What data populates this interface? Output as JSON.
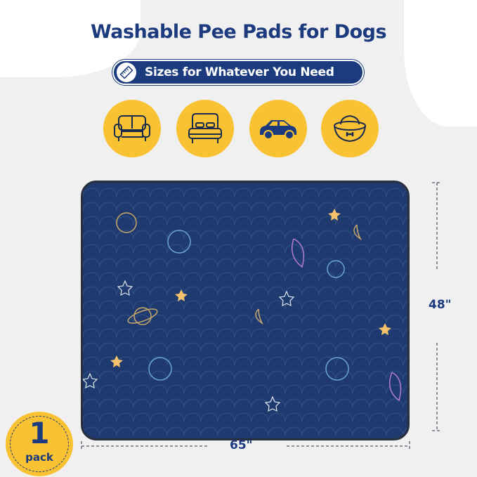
{
  "title": "Washable Pee Pads for Dogs",
  "badge": {
    "text": "Sizes for Whatever You Need",
    "icon": "ruler-icon"
  },
  "use_icons": [
    "sofa-icon",
    "bed-icon",
    "car-icon",
    "dog-bowl-icon"
  ],
  "dimensions": {
    "height": "48\"",
    "width": "65\""
  },
  "pack": {
    "count": "1",
    "label": "pack"
  },
  "colors": {
    "navy": "#1b3b7e",
    "yellow": "#f9c232",
    "mat": "#1e3a6e"
  }
}
